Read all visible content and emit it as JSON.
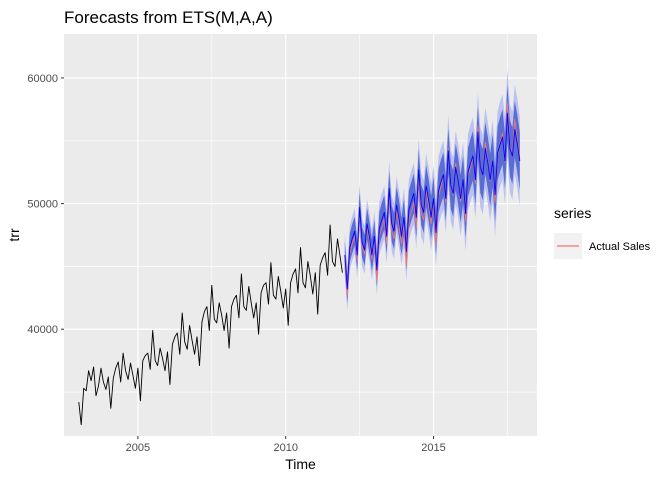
{
  "chart_data": {
    "type": "line",
    "title": "Forecasts from ETS(M,A,A)",
    "xlabel": "Time",
    "ylabel": "trr",
    "xlim": [
      2002.5,
      2018.5
    ],
    "ylim": [
      31500,
      63500
    ],
    "x_ticks": [
      2005,
      2010,
      2015
    ],
    "x_tick_labels": [
      "2005",
      "2010",
      "2015"
    ],
    "y_ticks": [
      40000,
      50000,
      60000
    ],
    "y_tick_labels": [
      "40000",
      "50000",
      "60000"
    ],
    "grid": true,
    "legend": {
      "title": "series",
      "position": "right",
      "entries": [
        {
          "label": "Actual Sales",
          "color": "#f8766d"
        }
      ]
    },
    "history": {
      "start": 2003.0,
      "step": 0.0833333,
      "color": "#000000",
      "values": [
        34200,
        32400,
        35300,
        35100,
        36700,
        35900,
        37000,
        34700,
        35500,
        36900,
        35800,
        35200,
        36200,
        33700,
        36100,
        36900,
        37400,
        35800,
        38100,
        36700,
        36000,
        37300,
        36300,
        35300,
        36900,
        34300,
        37500,
        37900,
        38100,
        36800,
        39900,
        37500,
        37100,
        38500,
        37700,
        36700,
        38200,
        35600,
        38800,
        39400,
        39700,
        38000,
        41300,
        39000,
        38400,
        40300,
        39100,
        38000,
        39400,
        37100,
        40600,
        41400,
        41800,
        39900,
        43500,
        40800,
        40500,
        42100,
        41100,
        39900,
        41300,
        38500,
        41800,
        42400,
        42700,
        40900,
        44400,
        41800,
        41500,
        43400,
        42100,
        40900,
        42100,
        39600,
        42900,
        43500,
        43700,
        42000,
        45300,
        42700,
        42400,
        44200,
        43000,
        41700,
        43200,
        40300,
        43700,
        44400,
        44800,
        42900,
        46500,
        43700,
        43300,
        45400,
        44200,
        42800,
        44500,
        41200,
        45100,
        45700,
        46100,
        44300,
        48300,
        45400,
        45000,
        47200,
        45900,
        44500
      ]
    },
    "actual_sales": {
      "start": 2012.0,
      "step": 0.0833333,
      "color": "#f8766d",
      "values": [
        45500,
        42700,
        46000,
        46800,
        47400,
        45500,
        49400,
        46600,
        46000,
        48100,
        47000,
        45600,
        47000,
        43900,
        47400,
        48100,
        48800,
        46800,
        50700,
        47800,
        47200,
        49500,
        48200,
        46800,
        48400,
        45000,
        48700,
        49400,
        50100,
        48100,
        52200,
        49300,
        48700,
        51100,
        49800,
        48400,
        50200,
        46700,
        50600,
        51400,
        52300,
        50100,
        54400,
        51300,
        50700,
        53200,
        51800,
        50200,
        51800,
        48600,
        52200,
        52900,
        53800,
        51600,
        56200,
        52900,
        52300,
        54900,
        53400,
        51800,
        53400,
        50100,
        53800,
        54800,
        55600,
        53300,
        58000,
        54600,
        54000,
        56700,
        55100,
        53500
      ]
    },
    "point_forecast": {
      "start": 2012.0,
      "step": 0.0833333,
      "color": "#0000ff",
      "values": [
        45900,
        43200,
        46500,
        47200,
        47800,
        45900,
        49700,
        46900,
        46300,
        48400,
        47300,
        45900,
        47400,
        44700,
        48000,
        48700,
        49300,
        47400,
        51200,
        48400,
        47800,
        49900,
        48800,
        47400,
        48900,
        46200,
        49500,
        50200,
        50800,
        48900,
        52700,
        49900,
        49300,
        51400,
        50300,
        48900,
        50400,
        47700,
        51000,
        51700,
        52300,
        50400,
        54200,
        51400,
        50800,
        52900,
        51800,
        50400,
        51900,
        49200,
        52500,
        53200,
        53800,
        51900,
        55700,
        52900,
        52300,
        54400,
        53300,
        51900,
        53400,
        50700,
        54000,
        54700,
        55300,
        53400,
        57200,
        54400,
        53800,
        55900,
        54800,
        53400
      ]
    },
    "interval_80": {
      "color": "#596dd5",
      "halfwidth_start": 1100,
      "halfwidth_end": 2300
    },
    "interval_95": {
      "color": "#bcc2f0",
      "halfwidth_start": 1700,
      "halfwidth_end": 3600
    }
  }
}
